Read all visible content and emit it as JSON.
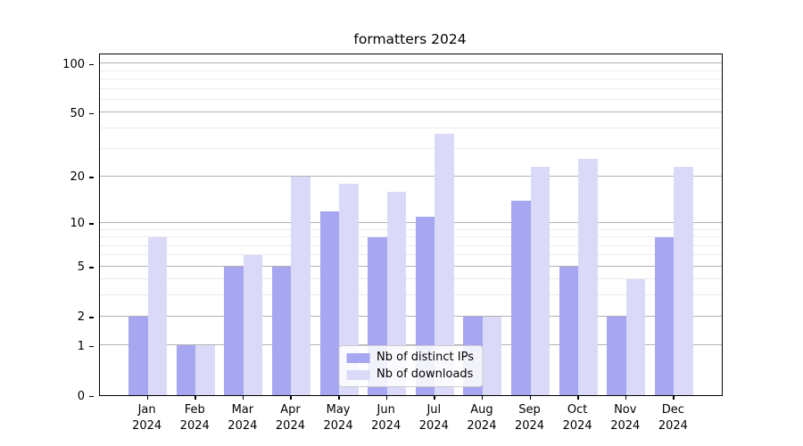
{
  "title": "formatters 2024",
  "chart_data": {
    "type": "bar",
    "title": "formatters 2024",
    "y_scale": "log1p",
    "grid": true,
    "legend_position": "lower center",
    "categories": [
      "Jan",
      "Feb",
      "Mar",
      "Apr",
      "May",
      "Jun",
      "Jul",
      "Aug",
      "Sep",
      "Oct",
      "Nov",
      "Dec"
    ],
    "year_label": "2024",
    "series": [
      {
        "name": "Nb of distinct IPs",
        "color": "#a6a6f1",
        "values": [
          2,
          1,
          5,
          5,
          12,
          8,
          11,
          2,
          14,
          5,
          2,
          8
        ]
      },
      {
        "name": "Nb of downloads",
        "color": "#dadaf8",
        "values": [
          8,
          1,
          6,
          20,
          18,
          16,
          37,
          2,
          23,
          26,
          4,
          23
        ]
      }
    ],
    "y_major_ticks": [
      0,
      1,
      2,
      5,
      10,
      20,
      50,
      100
    ],
    "y_minor_ticks": [
      3,
      4,
      6,
      7,
      8,
      9,
      30,
      40,
      60,
      70,
      80,
      90
    ],
    "ylim": [
      0,
      114
    ],
    "xlabel": "",
    "ylabel": ""
  },
  "colors": {
    "major_grid": "#b2b2b2",
    "minor_grid": "#ebebeb",
    "spine": "#000000",
    "background": "#ffffff"
  }
}
